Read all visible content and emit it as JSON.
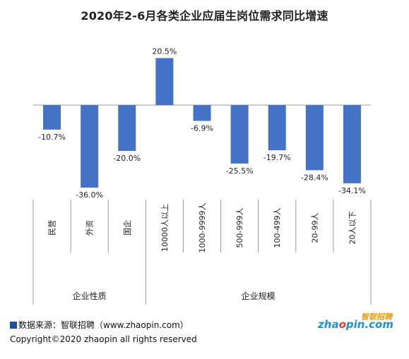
{
  "chart_data": {
    "type": "bar",
    "title": "2020年2-6月各类企业应届生岗位需求同比增速",
    "categories": [
      "民营",
      "外资",
      "国企",
      "10000人以上",
      "1000-9999人",
      "500-999人",
      "100-499人",
      "20-99人",
      "20人以下"
    ],
    "values": [
      -10.7,
      -36.0,
      -20.0,
      20.5,
      -6.9,
      -25.5,
      -19.7,
      -28.4,
      -34.1
    ],
    "value_labels": [
      "-10.7%",
      "-36.0%",
      "-20.0%",
      "20.5%",
      "-6.9%",
      "-25.5%",
      "-19.7%",
      "-28.4%",
      "-34.1%"
    ],
    "groups": [
      {
        "label": "企业性质",
        "count": 3
      },
      {
        "label": "企业规模",
        "count": 6
      }
    ],
    "ylim": [
      -36,
      20.5
    ],
    "bar_color": "#4472c4",
    "grid": false,
    "legend": "none"
  },
  "footer": {
    "source": "数据来源：智联招聘（www.zhaopin.com）",
    "copyright": "Copyright©2020 zhaopin all rights reserved"
  },
  "logo": {
    "cn": "智联招聘",
    "en_pre": "zha",
    "en_accent": "o",
    "en_post": "pin.com"
  }
}
